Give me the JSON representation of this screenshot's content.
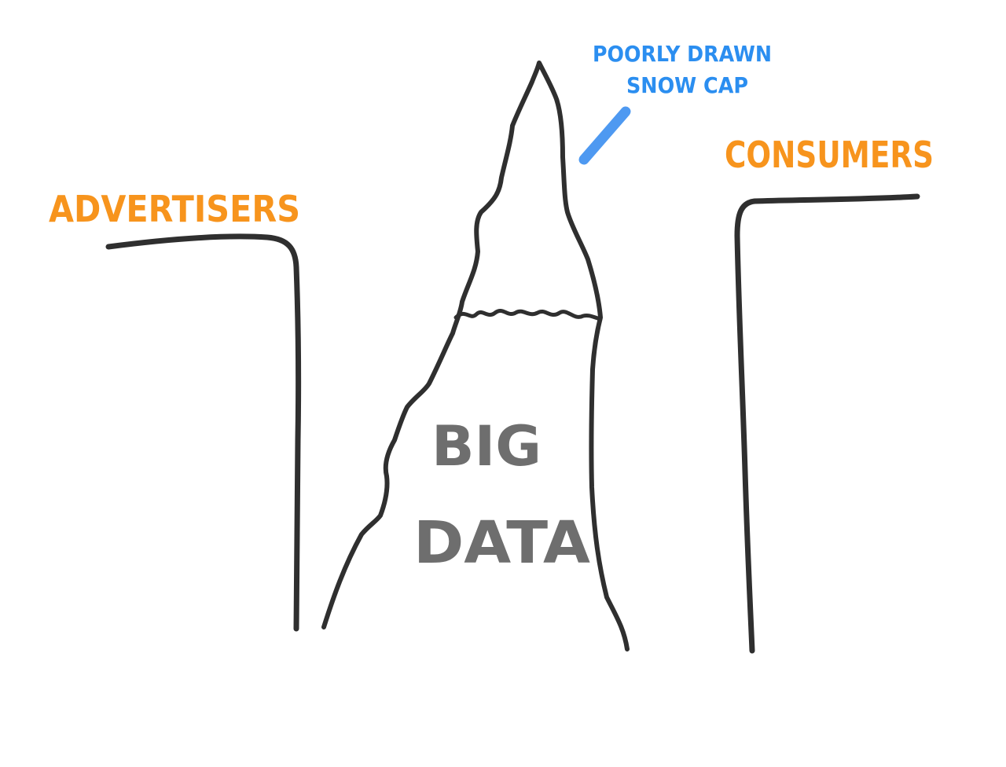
{
  "diagram": {
    "left_label": "ADVERTISERS",
    "right_label": "CONSUMERS",
    "annotation_line1": "POORLY DRAWN",
    "annotation_line2": "SNOW CAP",
    "center_line1": "BIG",
    "center_line2": "DATA"
  },
  "colors": {
    "label": "#f7941d",
    "annotation": "#2b8ef0",
    "center_text": "#6e6e6e",
    "ink": "#2f2f2f"
  }
}
